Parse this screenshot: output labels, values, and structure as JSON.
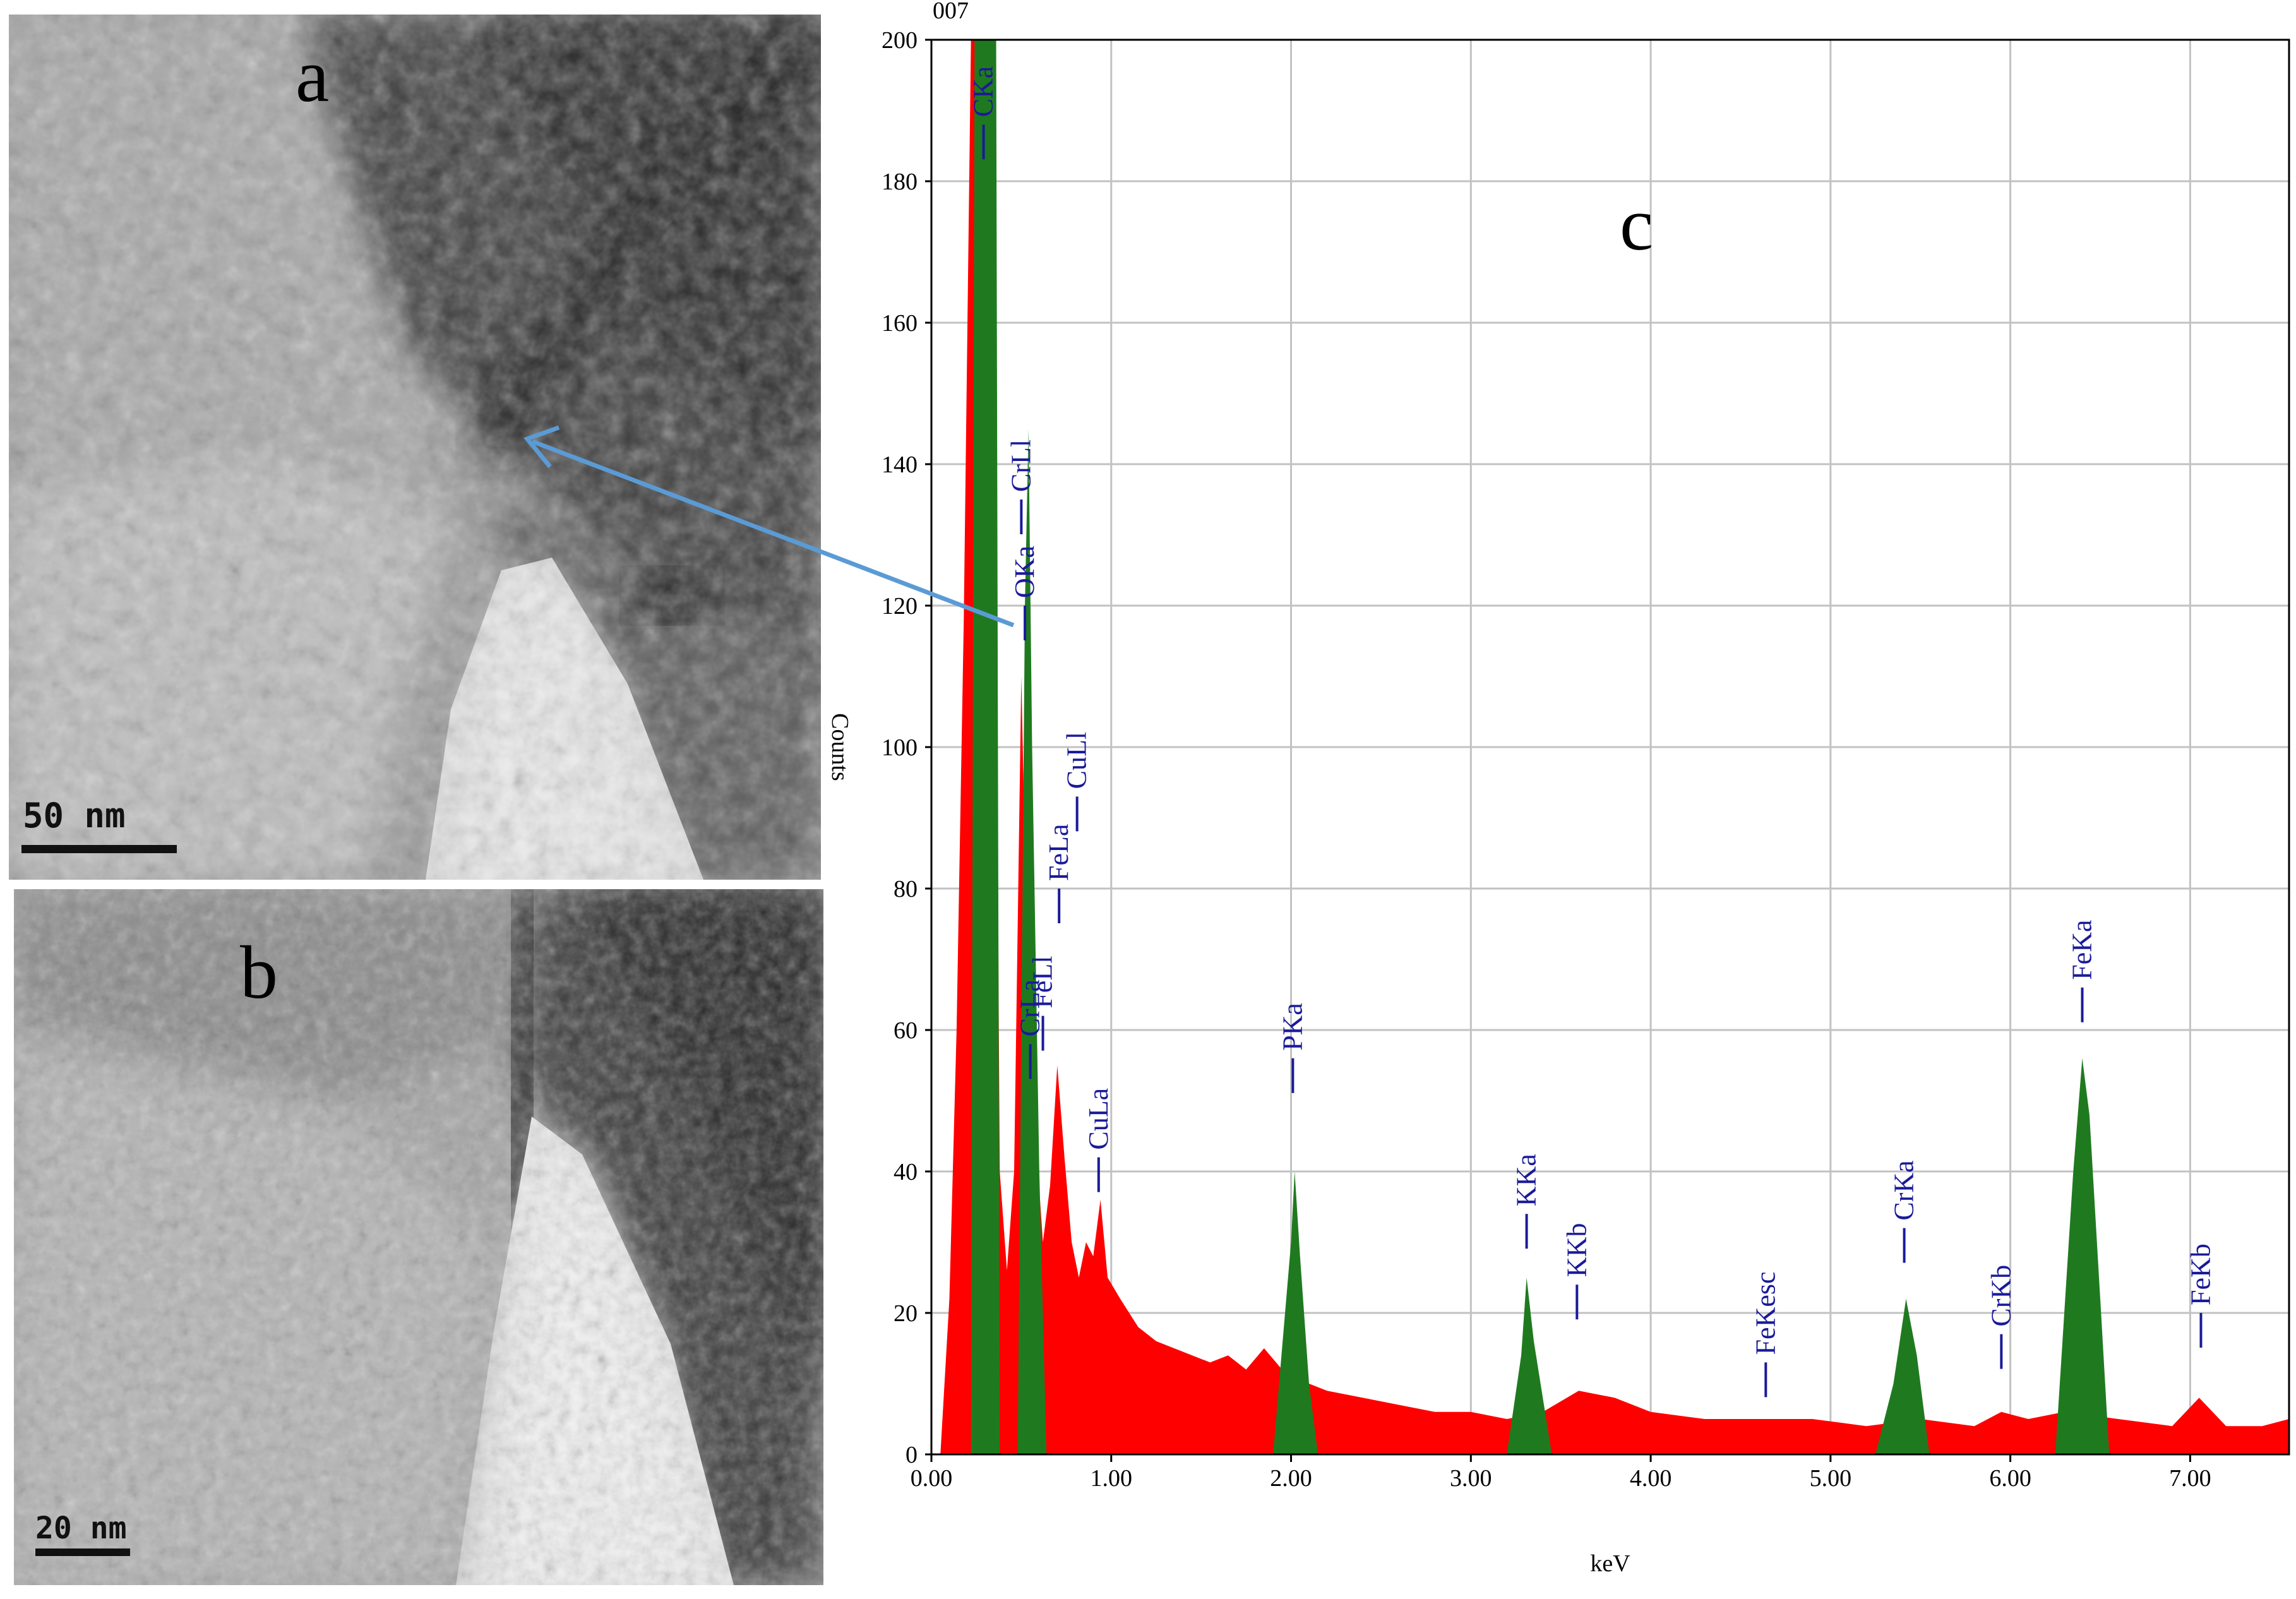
{
  "panels": {
    "a": {
      "letter": "a",
      "scale_label": "50 nm"
    },
    "b": {
      "letter": "b",
      "scale_label": "20 nm"
    },
    "c": {
      "letter": "c"
    }
  },
  "chart_data": {
    "type": "bar",
    "title": "",
    "top_left_fragment": "007",
    "xlabel": "keV",
    "ylabel": "Counts",
    "xlim": [
      0,
      7.55
    ],
    "ylim": [
      0,
      200
    ],
    "x_ticks": [
      "0.00",
      "1.00",
      "2.00",
      "3.00",
      "4.00",
      "5.00",
      "6.00",
      "7.00"
    ],
    "y_ticks": [
      "0",
      "20",
      "40",
      "60",
      "80",
      "100",
      "120",
      "140",
      "160",
      "180",
      "200"
    ],
    "grid": true,
    "colors": {
      "background": "#ff0000",
      "peak": "#1f7a1f",
      "label": "#1a1a9a",
      "grid": "#c2c2c2",
      "arrow": "#5b9bd5"
    },
    "peak_regions_keV": [
      [
        0.22,
        0.38
      ],
      [
        0.48,
        0.64
      ],
      [
        1.9,
        2.15
      ],
      [
        3.2,
        3.45
      ],
      [
        5.25,
        5.55
      ],
      [
        6.25,
        6.55
      ]
    ],
    "series": [
      {
        "name": "background",
        "color": "#ff0000",
        "points": [
          [
            0.05,
            0
          ],
          [
            0.1,
            22
          ],
          [
            0.14,
            60
          ],
          [
            0.18,
            118
          ],
          [
            0.22,
            200
          ],
          [
            0.26,
            200
          ],
          [
            0.3,
            200
          ],
          [
            0.34,
            200
          ],
          [
            0.38,
            40
          ],
          [
            0.42,
            26
          ],
          [
            0.46,
            40
          ],
          [
            0.5,
            110
          ],
          [
            0.54,
            60
          ],
          [
            0.58,
            45
          ],
          [
            0.62,
            30
          ],
          [
            0.66,
            38
          ],
          [
            0.7,
            55
          ],
          [
            0.74,
            42
          ],
          [
            0.78,
            30
          ],
          [
            0.82,
            25
          ],
          [
            0.86,
            30
          ],
          [
            0.9,
            28
          ],
          [
            0.94,
            36
          ],
          [
            0.98,
            25
          ],
          [
            1.05,
            22
          ],
          [
            1.15,
            18
          ],
          [
            1.25,
            16
          ],
          [
            1.35,
            15
          ],
          [
            1.45,
            14
          ],
          [
            1.55,
            13
          ],
          [
            1.65,
            14
          ],
          [
            1.75,
            12
          ],
          [
            1.85,
            15
          ],
          [
            1.95,
            12
          ],
          [
            2.1,
            10
          ],
          [
            2.2,
            9
          ],
          [
            2.4,
            8
          ],
          [
            2.6,
            7
          ],
          [
            2.8,
            6
          ],
          [
            3.0,
            6
          ],
          [
            3.2,
            5
          ],
          [
            3.4,
            6
          ],
          [
            3.6,
            9
          ],
          [
            3.8,
            8
          ],
          [
            4.0,
            6
          ],
          [
            4.3,
            5
          ],
          [
            4.6,
            5
          ],
          [
            4.9,
            5
          ],
          [
            5.2,
            4
          ],
          [
            5.5,
            5
          ],
          [
            5.8,
            4
          ],
          [
            5.95,
            6
          ],
          [
            6.1,
            5
          ],
          [
            6.3,
            6
          ],
          [
            6.6,
            5
          ],
          [
            6.9,
            4
          ],
          [
            7.05,
            8
          ],
          [
            7.2,
            4
          ],
          [
            7.4,
            4
          ],
          [
            7.55,
            5
          ]
        ]
      },
      {
        "name": "peaks",
        "color": "#1f7a1f",
        "points": [
          [
            0.22,
            0
          ],
          [
            0.24,
            200
          ],
          [
            0.28,
            200
          ],
          [
            0.32,
            200
          ],
          [
            0.36,
            200
          ],
          [
            0.38,
            0
          ],
          [
            0.48,
            0
          ],
          [
            0.5,
            60
          ],
          [
            0.52,
            120
          ],
          [
            0.54,
            145
          ],
          [
            0.56,
            100
          ],
          [
            0.6,
            40
          ],
          [
            0.64,
            0
          ],
          [
            1.9,
            0
          ],
          [
            1.95,
            15
          ],
          [
            2.0,
            30
          ],
          [
            2.02,
            40
          ],
          [
            2.05,
            28
          ],
          [
            2.1,
            10
          ],
          [
            2.15,
            0
          ],
          [
            3.2,
            0
          ],
          [
            3.28,
            14
          ],
          [
            3.31,
            25
          ],
          [
            3.35,
            16
          ],
          [
            3.45,
            0
          ],
          [
            5.25,
            0
          ],
          [
            5.35,
            10
          ],
          [
            5.42,
            22
          ],
          [
            5.48,
            14
          ],
          [
            5.55,
            0
          ],
          [
            6.25,
            0
          ],
          [
            6.3,
            20
          ],
          [
            6.35,
            40
          ],
          [
            6.4,
            56
          ],
          [
            6.44,
            48
          ],
          [
            6.5,
            22
          ],
          [
            6.55,
            0
          ]
        ]
      }
    ],
    "peak_labels": [
      {
        "text": "CKa",
        "x": 0.29,
        "marker_y": 188
      },
      {
        "text": "CrLl",
        "x": 0.5,
        "marker_y": 135
      },
      {
        "text": "OKa",
        "x": 0.52,
        "marker_y": 120
      },
      {
        "text": "CrLa",
        "x": 0.55,
        "marker_y": 58
      },
      {
        "text": "FeLl",
        "x": 0.62,
        "marker_y": 62
      },
      {
        "text": "FeLa",
        "x": 0.71,
        "marker_y": 80
      },
      {
        "text": "CuLl",
        "x": 0.81,
        "marker_y": 93
      },
      {
        "text": "CuLa",
        "x": 0.93,
        "marker_y": 42
      },
      {
        "text": "PKa",
        "x": 2.01,
        "marker_y": 56
      },
      {
        "text": "KKa",
        "x": 3.31,
        "marker_y": 34
      },
      {
        "text": "KKb",
        "x": 3.59,
        "marker_y": 24
      },
      {
        "text": "FeKesc",
        "x": 4.64,
        "marker_y": 13
      },
      {
        "text": "CrKa",
        "x": 5.41,
        "marker_y": 32
      },
      {
        "text": "CrKb",
        "x": 5.95,
        "marker_y": 17
      },
      {
        "text": "FeKa",
        "x": 6.4,
        "marker_y": 66
      },
      {
        "text": "FeKb",
        "x": 7.06,
        "marker_y": 20
      }
    ]
  }
}
